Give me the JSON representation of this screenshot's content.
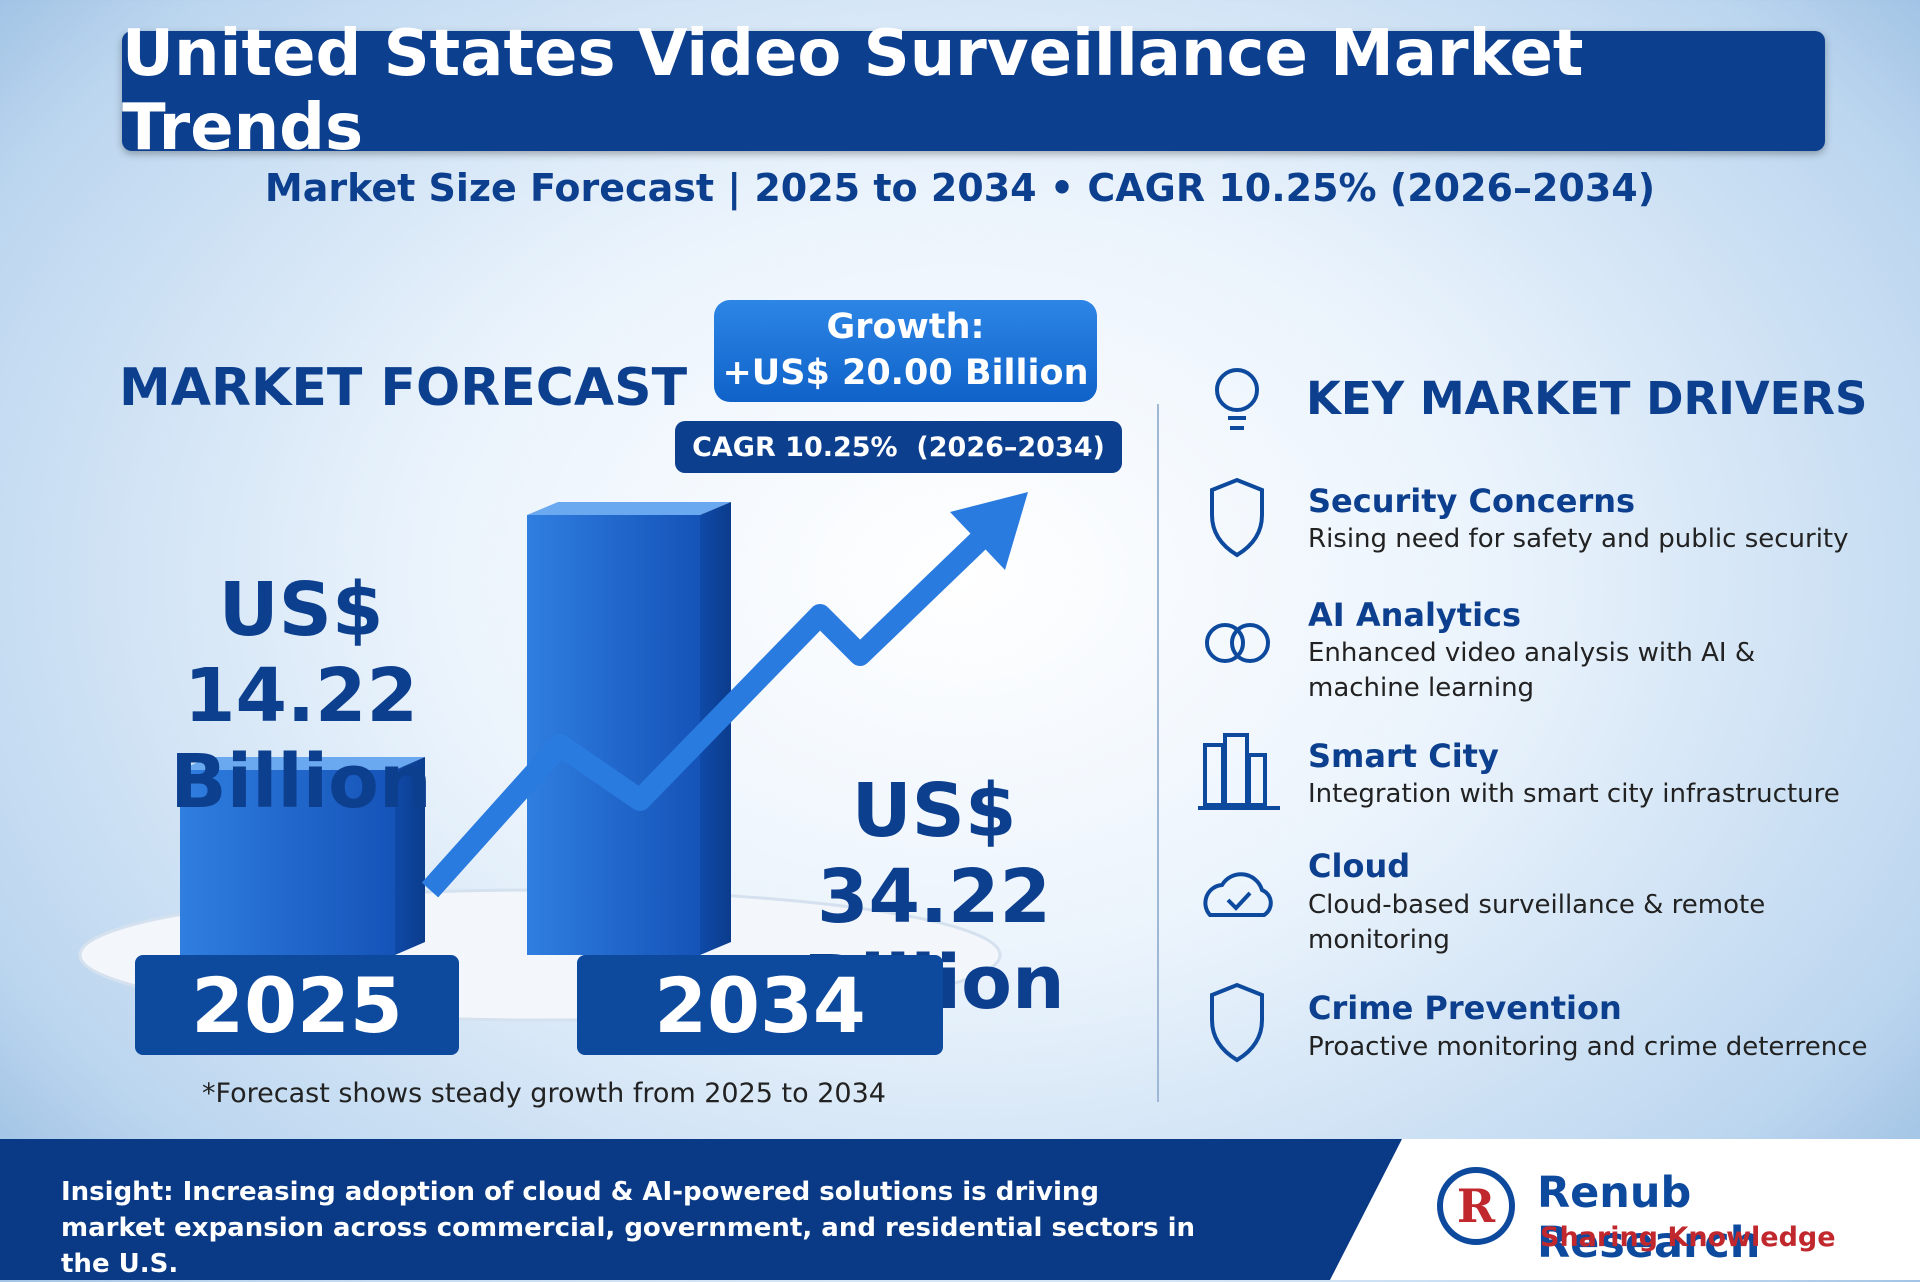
{
  "header": {
    "title": "United States Video Surveillance Market Trends",
    "subtitle": "Market Size Forecast | 2025 to 2034 • CAGR 10.25% (2026–2034)"
  },
  "forecast": {
    "heading": "MARKET FORECAST",
    "growth_label": "Growth:",
    "growth_value": "+US$ 20.00 Billion",
    "cagr": "CAGR 10.25%  (2026–2034)",
    "start": {
      "value": "US$ 14.22",
      "unit": "Billion",
      "year": "2025"
    },
    "end": {
      "value": "US$ 34.22",
      "unit": "Billion",
      "year": "2034"
    },
    "note": "*Forecast shows steady growth from 2025 to 2034"
  },
  "drivers": {
    "heading": "KEY MARKET DRIVERS",
    "items": [
      {
        "title": "Security Concerns",
        "text": "Rising need for safety and public security"
      },
      {
        "title": "AI Analytics",
        "text": "Enhanced video analysis with AI & machine learning"
      },
      {
        "title": "Smart City",
        "text": "Integration with smart city infrastructure"
      },
      {
        "title": "Cloud",
        "text": "Cloud-based surveillance & remote monitoring"
      },
      {
        "title": "Crime Prevention",
        "text": "Proactive monitoring and crime deterrence"
      }
    ]
  },
  "footer": {
    "insight": "Insight: Increasing adoption of cloud & AI-powered solutions is driving market expansion across commercial, government, and residential sectors in the U.S.",
    "brand": "Renub Research",
    "tagline": "Sharing Knowledge"
  }
}
